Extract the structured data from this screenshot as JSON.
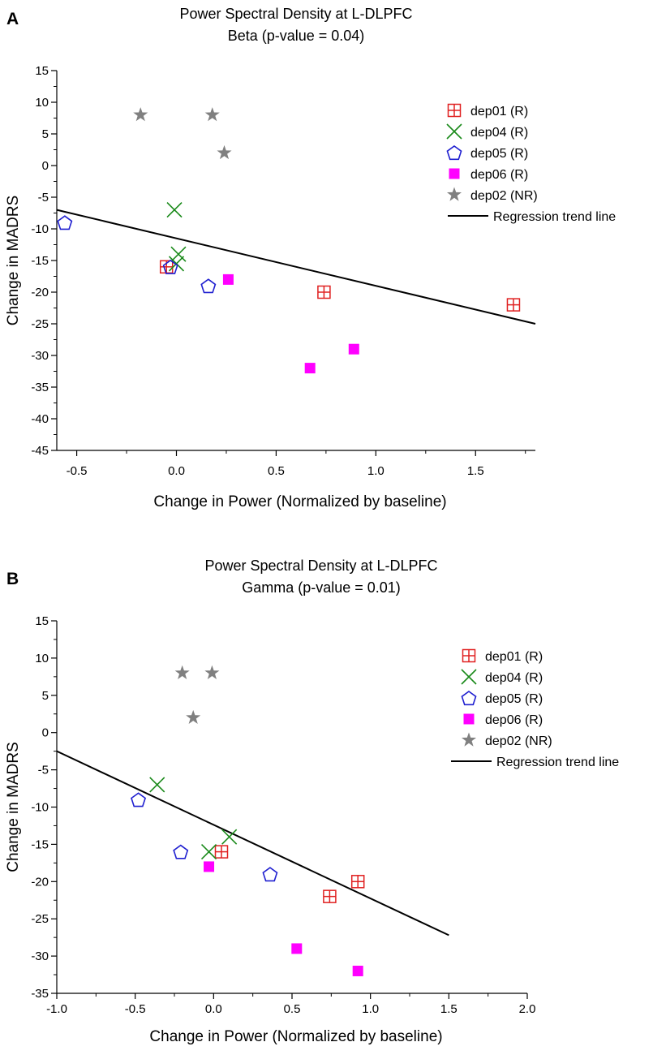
{
  "chart_data": [
    {
      "type": "scatter",
      "panel_label": "A",
      "title": "Power Spectral Density at L-DLPFC",
      "subtitle": "Beta (p-value = 0.04)",
      "xlabel": "Change in Power (Normalized by baseline)",
      "ylabel": "Change in MADRS",
      "xlim": [
        -0.6,
        1.8
      ],
      "ylim": [
        -45,
        15
      ],
      "xticks": [
        -0.5,
        0,
        0.5,
        1.0,
        1.5
      ],
      "xtick_labels": [
        "-0.5",
        "0.0",
        "0.5",
        "1.0",
        "1.5"
      ],
      "yticks": [
        15,
        10,
        5,
        0,
        -5,
        -10,
        -15,
        -20,
        -25,
        -30,
        -35,
        -40,
        -45
      ],
      "ytick_labels": [
        "15",
        "10",
        "5",
        "0",
        "-5",
        "-10",
        "-15",
        "-20",
        "-25",
        "-30",
        "-35",
        "-40",
        "-45"
      ],
      "legend_position": "top-right",
      "series": [
        {
          "name": "dep01 (R)",
          "marker": "square-plus",
          "color": "#e02020",
          "points": [
            [
              -0.05,
              -16
            ],
            [
              0.74,
              -20
            ],
            [
              1.69,
              -22
            ]
          ]
        },
        {
          "name": "dep04 (R)",
          "marker": "x",
          "color": "#1a8a1a",
          "points": [
            [
              -0.01,
              -7
            ],
            [
              0.01,
              -14
            ],
            [
              0.0,
              -15.5
            ]
          ]
        },
        {
          "name": "dep05 (R)",
          "marker": "pentagon",
          "color": "#1f1fd0",
          "points": [
            [
              -0.56,
              -9
            ],
            [
              -0.03,
              -16
            ],
            [
              0.16,
              -19
            ]
          ]
        },
        {
          "name": "dep06 (R)",
          "marker": "filled-square",
          "color": "#ff00ff",
          "points": [
            [
              0.26,
              -18
            ],
            [
              0.67,
              -32
            ],
            [
              0.89,
              -29
            ]
          ]
        },
        {
          "name": "dep02 (NR)",
          "marker": "star",
          "color": "#808080",
          "points": [
            [
              -0.18,
              8
            ],
            [
              0.18,
              8
            ],
            [
              0.24,
              2
            ]
          ]
        }
      ],
      "regression": {
        "name": "Regression trend line",
        "points": [
          [
            -0.6,
            -7.0
          ],
          [
            1.8,
            -25.0
          ]
        ]
      }
    },
    {
      "type": "scatter",
      "panel_label": "B",
      "title": "Power Spectral Density at L-DLPFC",
      "subtitle": "Gamma (p-value = 0.01)",
      "xlabel": "Change in Power (Normalized by baseline)",
      "ylabel": "Change in MADRS",
      "xlim": [
        -1.0,
        2.0
      ],
      "ylim": [
        -35,
        15
      ],
      "xticks": [
        -1.0,
        -0.5,
        0,
        0.5,
        1.0,
        1.5,
        2.0
      ],
      "xtick_labels": [
        "-1.0",
        "-0.5",
        "0.0",
        "0.5",
        "1.0",
        "1.5",
        "2.0"
      ],
      "yticks": [
        15,
        10,
        5,
        0,
        -5,
        -10,
        -15,
        -20,
        -25,
        -30,
        -35
      ],
      "ytick_labels": [
        "15",
        "10",
        "5",
        "0",
        "-5",
        "-10",
        "-15",
        "-20",
        "-25",
        "-30",
        "-35"
      ],
      "legend_position": "top-right",
      "series": [
        {
          "name": "dep01 (R)",
          "marker": "square-plus",
          "color": "#e02020",
          "points": [
            [
              0.05,
              -16
            ],
            [
              0.92,
              -20
            ],
            [
              0.74,
              -22
            ]
          ]
        },
        {
          "name": "dep04 (R)",
          "marker": "x",
          "color": "#1a8a1a",
          "points": [
            [
              -0.36,
              -7
            ],
            [
              0.1,
              -14
            ],
            [
              -0.03,
              -16
            ]
          ]
        },
        {
          "name": "dep05 (R)",
          "marker": "pentagon",
          "color": "#1f1fd0",
          "points": [
            [
              -0.48,
              -9
            ],
            [
              -0.21,
              -16
            ],
            [
              0.36,
              -19
            ]
          ]
        },
        {
          "name": "dep06 (R)",
          "marker": "filled-square",
          "color": "#ff00ff",
          "points": [
            [
              -0.03,
              -18
            ],
            [
              0.53,
              -29
            ],
            [
              0.92,
              -32
            ]
          ]
        },
        {
          "name": "dep02 (NR)",
          "marker": "star",
          "color": "#808080",
          "points": [
            [
              -0.2,
              8
            ],
            [
              -0.01,
              8
            ],
            [
              -0.13,
              2
            ]
          ]
        }
      ],
      "regression": {
        "name": "Regression trend line",
        "points": [
          [
            -1.0,
            -2.5
          ],
          [
            1.5,
            -27.2
          ]
        ]
      }
    }
  ]
}
